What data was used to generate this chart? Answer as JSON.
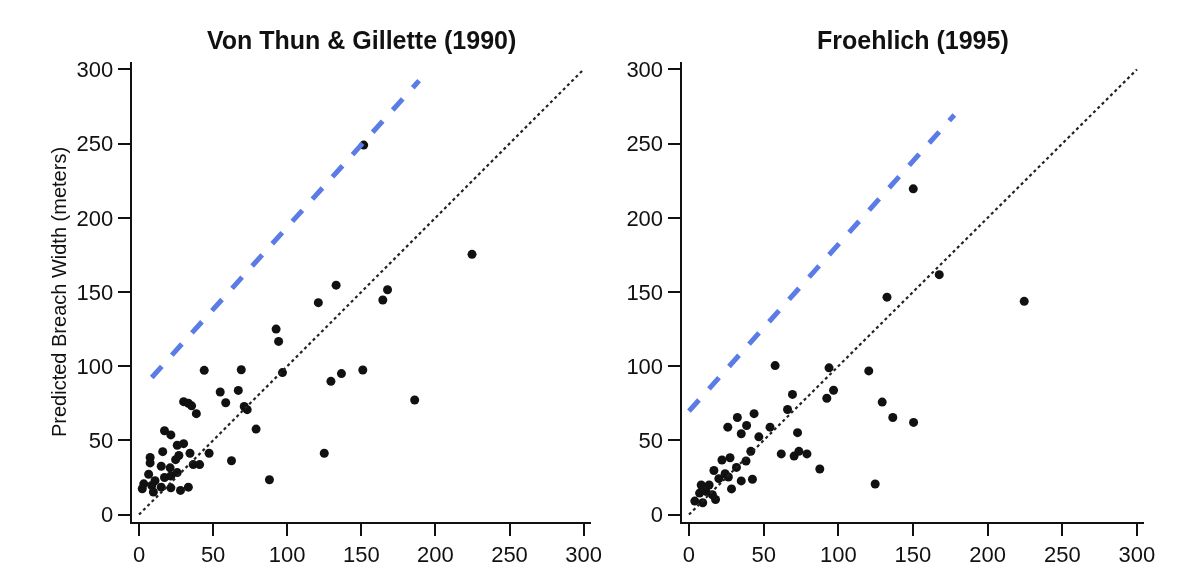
{
  "chart_data": [
    {
      "type": "scatter",
      "title": "Von Thun & Gillette (1990)",
      "ylabel": "Predicted Breach Width (meters)",
      "xlim": [
        -5,
        305
      ],
      "ylim": [
        -5,
        305
      ],
      "xticks": [
        0,
        50,
        100,
        150,
        200,
        250,
        300
      ],
      "yticks": [
        0,
        50,
        100,
        150,
        200,
        250,
        300
      ],
      "marker": "circle",
      "series": [
        {
          "color": "#111111",
          "x": [
            224.7,
            151.6,
            133,
            121,
            167.7,
            164.5,
            92.5,
            94.2,
            44,
            69,
            96.8,
            129.5,
            136.6,
            151,
            186,
            54.8,
            67,
            58.5,
            30.1,
            33.3,
            35.5,
            38.7,
            71,
            73,
            79,
            125,
            88,
            62.4,
            47.3,
            17.2,
            21.5,
            25.8,
            30.1,
            16,
            7.5,
            7.5,
            26.9,
            34.4,
            36.6,
            40.9,
            15,
            21,
            24.7,
            6.5,
            25.8,
            10.8,
            17.2,
            21.5,
            3.2,
            8.6,
            15,
            21.5,
            2.2,
            9.7,
            28,
            33.3
          ],
          "values": [
            175.4,
            249,
            154.6,
            142.8,
            151.5,
            144.6,
            125,
            116.7,
            97.2,
            97.6,
            95.7,
            89.8,
            95,
            97.4,
            77.2,
            82.6,
            83.7,
            75.4,
            76.1,
            75,
            73.3,
            68,
            72.8,
            70.7,
            57.6,
            41.3,
            23.5,
            36.3,
            41.3,
            56.5,
            53.7,
            46.7,
            47.8,
            42.4,
            38.5,
            34.8,
            39.8,
            41.3,
            33.7,
            33.7,
            32.6,
            31.5,
            37,
            27.2,
            28.3,
            22.8,
            25,
            26,
            20.7,
            19.6,
            18.5,
            18,
            17.4,
            15.2,
            16.3,
            18.5
          ]
        },
        {
          "type": "line",
          "color": "#222222",
          "line_style": "dotted",
          "marker": "none",
          "x": [
            0,
            300
          ],
          "values": [
            0,
            300
          ]
        },
        {
          "type": "line",
          "color": "#5b7be6",
          "line_style": "dashed",
          "marker": "none",
          "x": [
            8.6,
            189
          ],
          "values": [
            92.4,
            292.4
          ]
        }
      ]
    },
    {
      "type": "scatter",
      "title": "Froehlich (1995)",
      "xlim": [
        -5,
        305
      ],
      "ylim": [
        -5,
        305
      ],
      "xticks": [
        0,
        50,
        100,
        150,
        200,
        250,
        300
      ],
      "yticks": [
        0,
        50,
        100,
        150,
        200,
        250,
        300
      ],
      "marker": "circle",
      "series": [
        {
          "color": "#111111",
          "x": [
            150.2,
            167.6,
            132.6,
            224.5,
            57.7,
            93.8,
            120.4,
            96.8,
            92.3,
            69.3,
            129.4,
            66,
            136.5,
            150.4,
            43.6,
            32.4,
            26,
            38.6,
            35,
            54.3,
            46.8,
            72.7,
            61.8,
            70.4,
            73.6,
            79,
            87.6,
            124.7,
            41.4,
            38.2,
            31.8,
            42.5,
            35,
            28.5,
            22.1,
            27.5,
            16.7,
            24.2,
            20,
            26.4,
            8.2,
            13.5,
            11.4,
            15.7,
            9.2,
            3.9,
            17.8,
            7.1
          ],
          "values": [
            219.5,
            161.7,
            146.5,
            143.7,
            100.4,
            98.9,
            96.8,
            83.8,
            78.4,
            81,
            75.8,
            70.8,
            65.4,
            62.1,
            68,
            65.4,
            58.9,
            60,
            54.5,
            58.9,
            52.4,
            55.2,
            40.9,
            39.4,
            42.6,
            40.9,
            30.7,
            20.6,
            42.6,
            36.1,
            31.8,
            23.8,
            22.7,
            17.3,
            36.8,
            38.3,
            29.7,
            27.5,
            24.2,
            25.3,
            19.9,
            19.9,
            15.6,
            13.4,
            8,
            9.1,
            10.2,
            14.5
          ]
        },
        {
          "type": "line",
          "color": "#222222",
          "line_style": "dotted",
          "marker": "none",
          "x": [
            0,
            300
          ],
          "values": [
            0,
            300
          ]
        },
        {
          "type": "line",
          "color": "#5b7be6",
          "line_style": "dashed",
          "marker": "none",
          "x": [
            0,
            177.7
          ],
          "values": [
            69.7,
            269.3
          ]
        }
      ]
    }
  ]
}
